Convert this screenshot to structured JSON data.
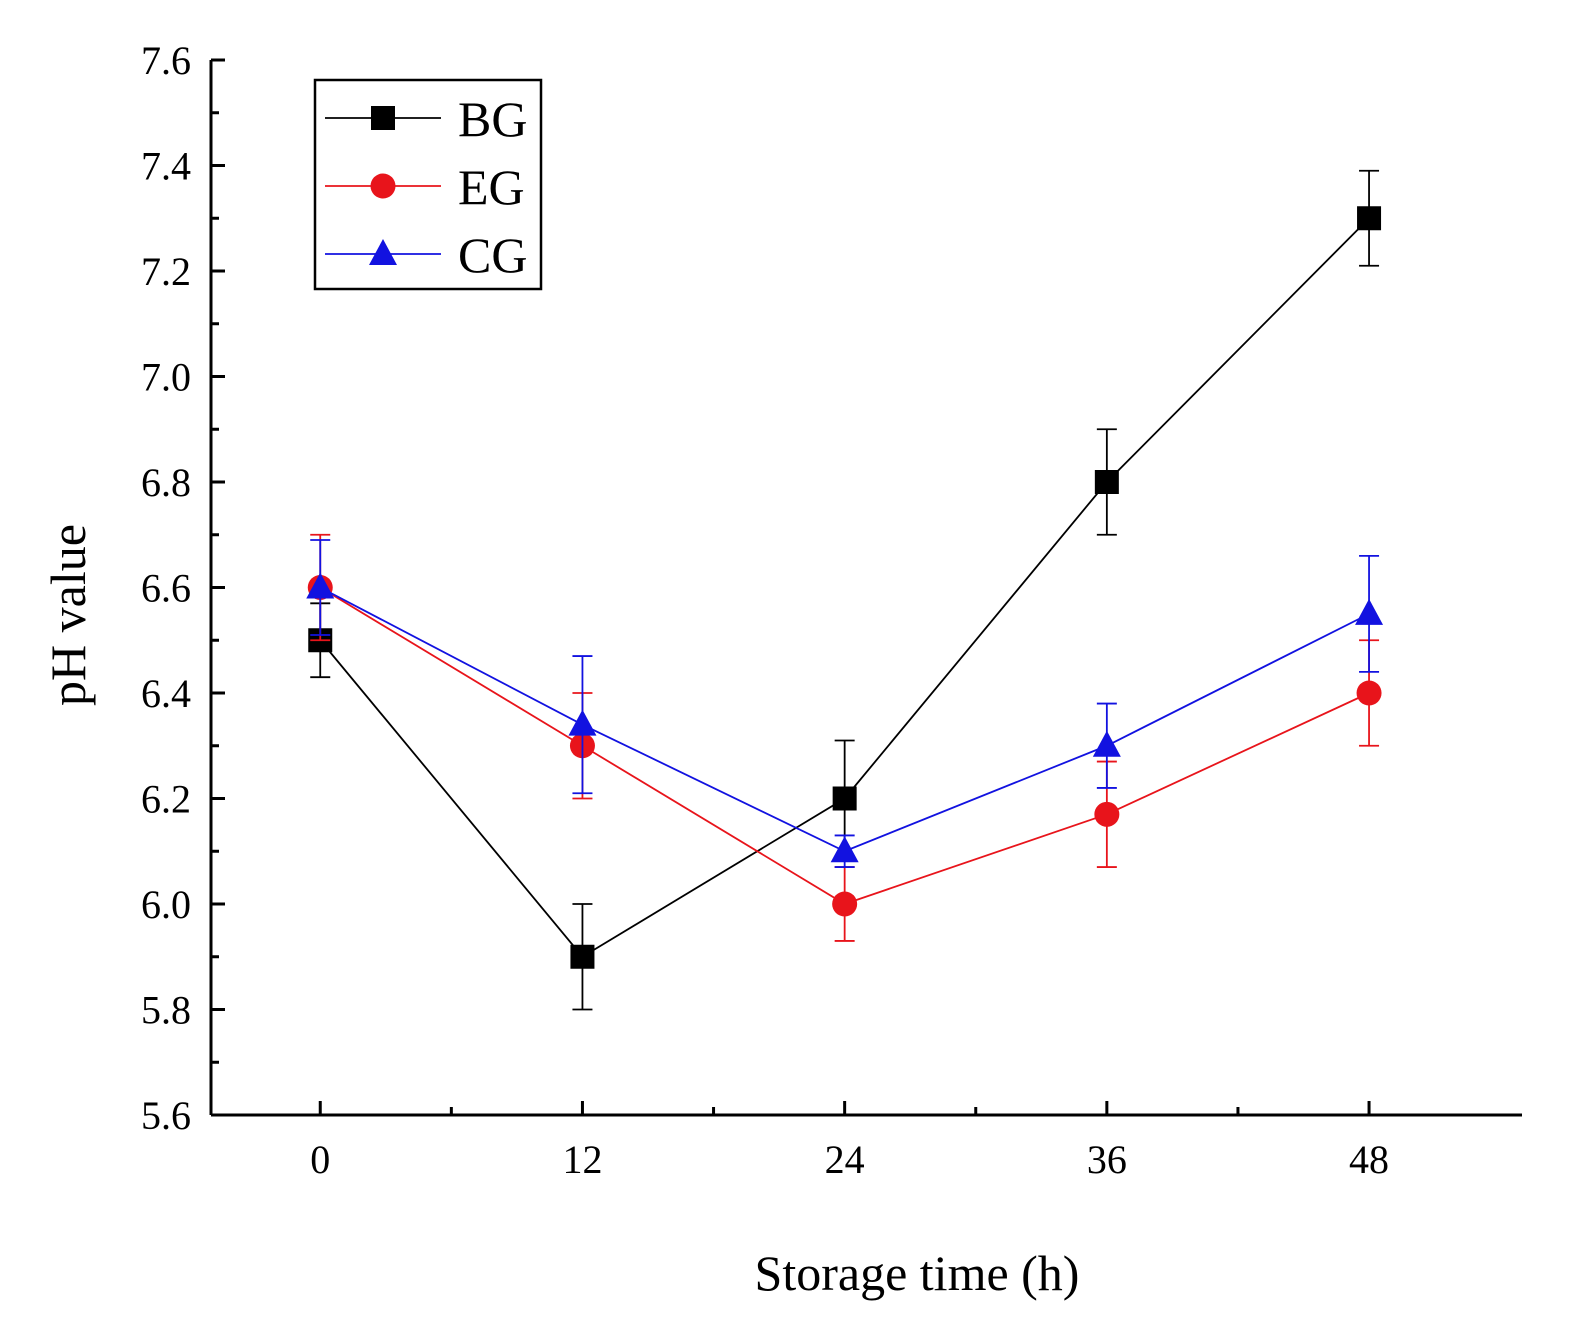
{
  "chart_data": {
    "type": "line",
    "title": "",
    "xlabel": "Storage time (h)",
    "ylabel": "pH value",
    "x": [
      0,
      12,
      24,
      36,
      48
    ],
    "xlim": [
      -5,
      55
    ],
    "ylim": [
      5.6,
      7.6
    ],
    "xticks": [
      "0",
      "12",
      "24",
      "36",
      "48"
    ],
    "yticks": [
      "5.6",
      "5.8",
      "6.0",
      "6.2",
      "6.4",
      "6.6",
      "6.8",
      "7.0",
      "7.2",
      "7.4",
      "7.6"
    ],
    "grid": false,
    "legend_position": "top-left",
    "series": [
      {
        "name": "BG",
        "color": "#000000",
        "marker": "square",
        "values": [
          6.5,
          5.9,
          6.2,
          6.8,
          7.3
        ],
        "errors": [
          0.07,
          0.1,
          0.11,
          0.1,
          0.09
        ]
      },
      {
        "name": "EG",
        "color": "#e8141b",
        "marker": "circle",
        "values": [
          6.6,
          6.3,
          6.0,
          6.17,
          6.4
        ],
        "errors": [
          0.1,
          0.1,
          0.07,
          0.1,
          0.1
        ]
      },
      {
        "name": "CG",
        "color": "#1212e0",
        "marker": "triangle",
        "values": [
          6.6,
          6.34,
          6.1,
          6.3,
          6.55
        ],
        "errors": [
          0.09,
          0.13,
          0.03,
          0.08,
          0.11
        ]
      }
    ]
  }
}
